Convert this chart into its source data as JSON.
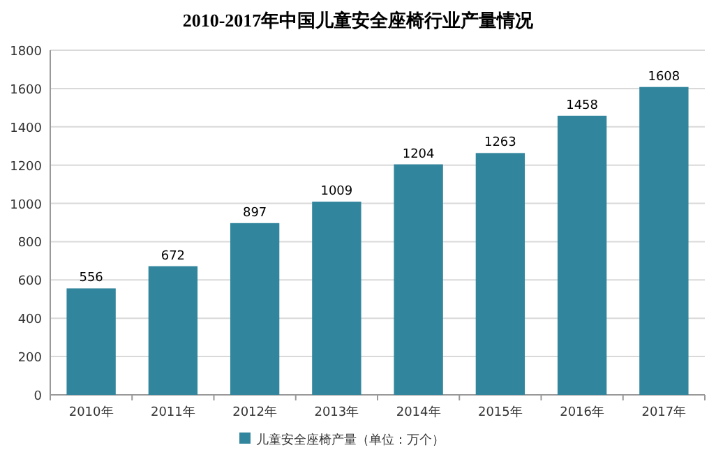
{
  "chart_data": {
    "type": "bar",
    "title": "2010-2017年中国儿童安全座椅行业产量情况",
    "categories": [
      "2010年",
      "2011年",
      "2012年",
      "2013年",
      "2014年",
      "2015年",
      "2016年",
      "2017年"
    ],
    "series": [
      {
        "name": "儿童安全座椅产量（单位：万个）",
        "color": "#31859c",
        "values": [
          556,
          672,
          897,
          1009,
          1204,
          1263,
          1458,
          1608
        ]
      }
    ],
    "ylim": [
      0,
      1800
    ],
    "yticks": [
      0,
      200,
      400,
      600,
      800,
      1000,
      1200,
      1400,
      1600,
      1800
    ],
    "grid": "y",
    "legend": "bottom",
    "data_labels": true
  }
}
